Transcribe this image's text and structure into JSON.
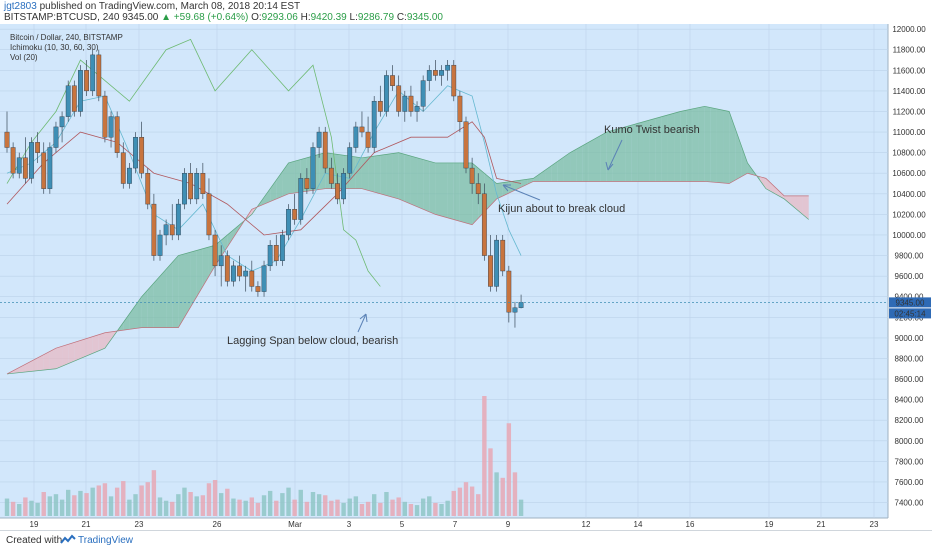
{
  "header": {
    "username": "jgt2803",
    "published_text": "published on TradingView.com, March 08, 2018 20:14 EST",
    "symbol": "BITSTAMP:BTCUSD, 240",
    "price": "9345.00",
    "change": "▲ +59.68 (+0.64%)",
    "open_label": "O:",
    "open": "9293.06",
    "high_label": "H:",
    "high": "9420.39",
    "low_label": "L:",
    "low": "9286.79",
    "close_label": "C:",
    "close": "9345.00"
  },
  "legend": [
    "Bitcoin / Dollar, 240, BITSTAMP",
    "Ichimoku (10, 30, 60, 30)",
    "Vol (20)"
  ],
  "footer": {
    "created_with": "Created with",
    "brand": "TradingView"
  },
  "colors": {
    "background": "#d2e7fb",
    "bull": "#3f8fb5",
    "bear": "#c8743e",
    "cloud_bull": "#76bb9e",
    "cloud_bear": "#e8b6c0",
    "conversion": "#65b8d0",
    "base": "#b0595f",
    "lagging": "#6eba73",
    "price_badge": "#2e6ab5"
  },
  "chart_data": {
    "type": "candlestick",
    "y_axis": {
      "range": [
        7250,
        12050
      ],
      "ticks": [
        "12000.00",
        "11800.00",
        "11600.00",
        "11400.00",
        "11200.00",
        "11000.00",
        "10800.00",
        "10600.00",
        "10400.00",
        "10200.00",
        "10000.00",
        "9800.00",
        "9600.00",
        "9400.00",
        "9200.00",
        "9000.00",
        "8800.00",
        "8600.00",
        "8400.00",
        "8200.00",
        "8000.00",
        "7800.00",
        "7600.00",
        "7400.00"
      ]
    },
    "x_axis": {
      "ticks": [
        "19",
        "21",
        "23",
        "26",
        "Mar",
        "3",
        "5",
        "7",
        "9",
        "12",
        "14",
        "16",
        "19",
        "21",
        "23"
      ]
    },
    "last_price": "9345.00",
    "countdown": "02:45:14",
    "annotations": [
      {
        "text": "Kumo Twist bearish"
      },
      {
        "text": "Kijun about to break cloud"
      },
      {
        "text": "Lagging Span below cloud, bearish"
      }
    ],
    "candles": [
      [
        11000,
        11200,
        10800,
        10850
      ],
      [
        10850,
        10900,
        10550,
        10600
      ],
      [
        10600,
        10800,
        10550,
        10750
      ],
      [
        10750,
        10950,
        10500,
        10550
      ],
      [
        10550,
        10950,
        10500,
        10900
      ],
      [
        10900,
        11000,
        10700,
        10800
      ],
      [
        10800,
        10900,
        10400,
        10450
      ],
      [
        10450,
        10900,
        10400,
        10850
      ],
      [
        10850,
        11100,
        10800,
        11050
      ],
      [
        11050,
        11200,
        10900,
        11150
      ],
      [
        11150,
        11500,
        11100,
        11450
      ],
      [
        11450,
        11500,
        11150,
        11200
      ],
      [
        11200,
        11650,
        11150,
        11600
      ],
      [
        11600,
        11700,
        11350,
        11400
      ],
      [
        11400,
        11800,
        11350,
        11750
      ],
      [
        11750,
        11800,
        11300,
        11350
      ],
      [
        11350,
        11400,
        10900,
        10950
      ],
      [
        10950,
        11200,
        10850,
        11150
      ],
      [
        11150,
        11200,
        10750,
        10800
      ],
      [
        10800,
        10900,
        10450,
        10500
      ],
      [
        10500,
        10700,
        10450,
        10650
      ],
      [
        10650,
        11000,
        10600,
        10950
      ],
      [
        10950,
        11100,
        10550,
        10600
      ],
      [
        10600,
        10650,
        10250,
        10300
      ],
      [
        10300,
        10400,
        9750,
        9800
      ],
      [
        9800,
        10050,
        9750,
        10000
      ],
      [
        10000,
        10150,
        9900,
        10100
      ],
      [
        10100,
        10300,
        9950,
        10000
      ],
      [
        10000,
        10350,
        9950,
        10300
      ],
      [
        10300,
        10650,
        10250,
        10600
      ],
      [
        10600,
        10700,
        10300,
        10350
      ],
      [
        10350,
        10650,
        10300,
        10600
      ],
      [
        10600,
        10700,
        10350,
        10400
      ],
      [
        10400,
        10550,
        9950,
        10000
      ],
      [
        10000,
        10050,
        9600,
        9700
      ],
      [
        9700,
        9900,
        9500,
        9800
      ],
      [
        9800,
        9850,
        9500,
        9550
      ],
      [
        9550,
        9750,
        9500,
        9700
      ],
      [
        9700,
        9800,
        9550,
        9600
      ],
      [
        9600,
        9700,
        9450,
        9650
      ],
      [
        9650,
        9750,
        9450,
        9500
      ],
      [
        9500,
        9550,
        9400,
        9450
      ],
      [
        9450,
        9750,
        9400,
        9700
      ],
      [
        9700,
        9950,
        9650,
        9900
      ],
      [
        9900,
        10000,
        9700,
        9750
      ],
      [
        9750,
        10050,
        9700,
        10000
      ],
      [
        10000,
        10300,
        9950,
        10250
      ],
      [
        10250,
        10400,
        10100,
        10150
      ],
      [
        10150,
        10600,
        10100,
        10550
      ],
      [
        10550,
        10650,
        10400,
        10450
      ],
      [
        10450,
        10900,
        10400,
        10850
      ],
      [
        10850,
        11050,
        10750,
        11000
      ],
      [
        11000,
        11050,
        10600,
        10650
      ],
      [
        10650,
        10750,
        10450,
        10500
      ],
      [
        10500,
        10600,
        10300,
        10350
      ],
      [
        10350,
        10650,
        10300,
        10600
      ],
      [
        10600,
        10900,
        10550,
        10850
      ],
      [
        10850,
        11100,
        10800,
        11050
      ],
      [
        11050,
        11200,
        10950,
        11000
      ],
      [
        11000,
        11150,
        10800,
        10850
      ],
      [
        10850,
        11350,
        10800,
        11300
      ],
      [
        11300,
        11450,
        11150,
        11200
      ],
      [
        11200,
        11600,
        11150,
        11550
      ],
      [
        11550,
        11650,
        11400,
        11450
      ],
      [
        11450,
        11550,
        11150,
        11200
      ],
      [
        11200,
        11400,
        11100,
        11350
      ],
      [
        11350,
        11450,
        11150,
        11200
      ],
      [
        11200,
        11300,
        11100,
        11250
      ],
      [
        11250,
        11550,
        11200,
        11500
      ],
      [
        11500,
        11650,
        11400,
        11600
      ],
      [
        11600,
        11700,
        11500,
        11550
      ],
      [
        11550,
        11650,
        11450,
        11600
      ],
      [
        11600,
        11700,
        11500,
        11650
      ],
      [
        11650,
        11700,
        11300,
        11350
      ],
      [
        11350,
        11400,
        11000,
        11100
      ],
      [
        11100,
        11150,
        10600,
        10650
      ],
      [
        10650,
        10750,
        10400,
        10500
      ],
      [
        10500,
        10600,
        10300,
        10400
      ],
      [
        10400,
        10500,
        9750,
        9800
      ],
      [
        9800,
        10000,
        9450,
        9500
      ],
      [
        9500,
        10000,
        9450,
        9950
      ],
      [
        9950,
        10000,
        9600,
        9650
      ],
      [
        9650,
        9700,
        9150,
        9250
      ],
      [
        9250,
        9350,
        9100,
        9293
      ],
      [
        9293.06,
        9420.39,
        9286.79,
        9345
      ]
    ],
    "volume": [
      {
        "value": 160,
        "dir": "up"
      },
      {
        "value": 130,
        "dir": "down"
      },
      {
        "value": 110,
        "dir": "up"
      },
      {
        "value": 170,
        "dir": "down"
      },
      {
        "value": 140,
        "dir": "up"
      },
      {
        "value": 120,
        "dir": "up"
      },
      {
        "value": 220,
        "dir": "down"
      },
      {
        "value": 180,
        "dir": "up"
      },
      {
        "value": 200,
        "dir": "up"
      },
      {
        "value": 150,
        "dir": "up"
      },
      {
        "value": 240,
        "dir": "up"
      },
      {
        "value": 190,
        "dir": "down"
      },
      {
        "value": 230,
        "dir": "up"
      },
      {
        "value": 210,
        "dir": "down"
      },
      {
        "value": 260,
        "dir": "up"
      },
      {
        "value": 280,
        "dir": "down"
      },
      {
        "value": 300,
        "dir": "down"
      },
      {
        "value": 180,
        "dir": "up"
      },
      {
        "value": 260,
        "dir": "down"
      },
      {
        "value": 320,
        "dir": "down"
      },
      {
        "value": 150,
        "dir": "up"
      },
      {
        "value": 200,
        "dir": "up"
      },
      {
        "value": 280,
        "dir": "down"
      },
      {
        "value": 310,
        "dir": "down"
      },
      {
        "value": 420,
        "dir": "down"
      },
      {
        "value": 170,
        "dir": "up"
      },
      {
        "value": 140,
        "dir": "up"
      },
      {
        "value": 130,
        "dir": "down"
      },
      {
        "value": 200,
        "dir": "up"
      },
      {
        "value": 260,
        "dir": "up"
      },
      {
        "value": 220,
        "dir": "down"
      },
      {
        "value": 180,
        "dir": "up"
      },
      {
        "value": 190,
        "dir": "down"
      },
      {
        "value": 300,
        "dir": "down"
      },
      {
        "value": 330,
        "dir": "down"
      },
      {
        "value": 210,
        "dir": "up"
      },
      {
        "value": 250,
        "dir": "down"
      },
      {
        "value": 160,
        "dir": "up"
      },
      {
        "value": 150,
        "dir": "down"
      },
      {
        "value": 140,
        "dir": "up"
      },
      {
        "value": 170,
        "dir": "down"
      },
      {
        "value": 120,
        "dir": "down"
      },
      {
        "value": 190,
        "dir": "up"
      },
      {
        "value": 230,
        "dir": "up"
      },
      {
        "value": 140,
        "dir": "down"
      },
      {
        "value": 210,
        "dir": "up"
      },
      {
        "value": 260,
        "dir": "up"
      },
      {
        "value": 150,
        "dir": "down"
      },
      {
        "value": 240,
        "dir": "up"
      },
      {
        "value": 130,
        "dir": "down"
      },
      {
        "value": 220,
        "dir": "up"
      },
      {
        "value": 200,
        "dir": "up"
      },
      {
        "value": 190,
        "dir": "down"
      },
      {
        "value": 140,
        "dir": "down"
      },
      {
        "value": 150,
        "dir": "down"
      },
      {
        "value": 120,
        "dir": "up"
      },
      {
        "value": 160,
        "dir": "up"
      },
      {
        "value": 180,
        "dir": "up"
      },
      {
        "value": 110,
        "dir": "down"
      },
      {
        "value": 130,
        "dir": "down"
      },
      {
        "value": 200,
        "dir": "up"
      },
      {
        "value": 120,
        "dir": "down"
      },
      {
        "value": 220,
        "dir": "up"
      },
      {
        "value": 150,
        "dir": "down"
      },
      {
        "value": 170,
        "dir": "down"
      },
      {
        "value": 130,
        "dir": "up"
      },
      {
        "value": 110,
        "dir": "down"
      },
      {
        "value": 100,
        "dir": "up"
      },
      {
        "value": 160,
        "dir": "up"
      },
      {
        "value": 180,
        "dir": "up"
      },
      {
        "value": 120,
        "dir": "down"
      },
      {
        "value": 110,
        "dir": "up"
      },
      {
        "value": 140,
        "dir": "up"
      },
      {
        "value": 230,
        "dir": "down"
      },
      {
        "value": 260,
        "dir": "down"
      },
      {
        "value": 310,
        "dir": "down"
      },
      {
        "value": 270,
        "dir": "down"
      },
      {
        "value": 200,
        "dir": "down"
      },
      {
        "value": 1100,
        "dir": "down"
      },
      {
        "value": 620,
        "dir": "down"
      },
      {
        "value": 400,
        "dir": "up"
      },
      {
        "value": 350,
        "dir": "down"
      },
      {
        "value": 850,
        "dir": "down"
      },
      {
        "value": 400,
        "dir": "down"
      },
      {
        "value": 150,
        "dir": "up"
      }
    ],
    "ichimoku": {
      "span_a": [
        [
          0,
          8650
        ],
        [
          8,
          8700
        ],
        [
          16,
          8900
        ],
        [
          22,
          9400
        ],
        [
          28,
          9800
        ],
        [
          34,
          9900
        ],
        [
          40,
          10200
        ],
        [
          46,
          10700
        ],
        [
          52,
          10800
        ],
        [
          58,
          10750
        ],
        [
          64,
          10800
        ],
        [
          70,
          10700
        ],
        [
          76,
          10700
        ],
        [
          80,
          10500
        ],
        [
          86,
          10550
        ],
        [
          92,
          10800
        ],
        [
          98,
          11000
        ],
        [
          104,
          11100
        ],
        [
          110,
          11200
        ],
        [
          114,
          11250
        ],
        [
          118,
          11200
        ],
        [
          121,
          10700
        ],
        [
          124,
          10450
        ],
        [
          127,
          10350
        ],
        [
          130,
          10200
        ],
        [
          131,
          10150
        ]
      ],
      "span_b": [
        [
          0,
          8650
        ],
        [
          8,
          8900
        ],
        [
          16,
          9050
        ],
        [
          22,
          9100
        ],
        [
          28,
          9100
        ],
        [
          34,
          9700
        ],
        [
          40,
          10250
        ],
        [
          46,
          10400
        ],
        [
          52,
          10450
        ],
        [
          58,
          10450
        ],
        [
          64,
          10350
        ],
        [
          70,
          10200
        ],
        [
          76,
          10100
        ],
        [
          80,
          10350
        ],
        [
          86,
          10520
        ],
        [
          92,
          10520
        ],
        [
          98,
          10520
        ],
        [
          104,
          10520
        ],
        [
          110,
          10520
        ],
        [
          114,
          10520
        ],
        [
          118,
          10500
        ],
        [
          121,
          10600
        ],
        [
          124,
          10550
        ],
        [
          127,
          10380
        ],
        [
          130,
          10380
        ],
        [
          131,
          10380
        ]
      ],
      "conversion": [
        [
          0,
          10600
        ],
        [
          4,
          10700
        ],
        [
          8,
          10900
        ],
        [
          12,
          11300
        ],
        [
          16,
          11350
        ],
        [
          20,
          10800
        ],
        [
          24,
          10200
        ],
        [
          28,
          10050
        ],
        [
          32,
          10300
        ],
        [
          36,
          9800
        ],
        [
          40,
          9650
        ],
        [
          44,
          9750
        ],
        [
          48,
          10150
        ],
        [
          52,
          10600
        ],
        [
          56,
          10550
        ],
        [
          60,
          11000
        ],
        [
          64,
          11400
        ],
        [
          68,
          11200
        ],
        [
          72,
          11450
        ],
        [
          76,
          11350
        ],
        [
          78,
          10900
        ],
        [
          80,
          10400
        ],
        [
          82,
          10050
        ],
        [
          84,
          9800
        ]
      ],
      "base": [
        [
          0,
          10300
        ],
        [
          6,
          10700
        ],
        [
          12,
          11000
        ],
        [
          18,
          10900
        ],
        [
          24,
          10600
        ],
        [
          30,
          10500
        ],
        [
          36,
          10300
        ],
        [
          42,
          10000
        ],
        [
          48,
          10050
        ],
        [
          54,
          10400
        ],
        [
          60,
          10800
        ],
        [
          66,
          10950
        ],
        [
          72,
          10950
        ],
        [
          76,
          11100
        ],
        [
          78,
          10950
        ],
        [
          80,
          10550
        ],
        [
          84,
          10500
        ]
      ],
      "lagging": [
        [
          0,
          10500
        ],
        [
          4,
          10900
        ],
        [
          8,
          11200
        ],
        [
          12,
          11700
        ],
        [
          16,
          11500
        ],
        [
          20,
          11300
        ],
        [
          26,
          11800
        ],
        [
          30,
          11900
        ],
        [
          34,
          11400
        ],
        [
          40,
          11800
        ],
        [
          46,
          11400
        ],
        [
          50,
          11650
        ],
        [
          53,
          10950
        ],
        [
          55,
          10050
        ],
        [
          57,
          9950
        ],
        [
          59,
          9650
        ],
        [
          61,
          9500
        ]
      ]
    }
  }
}
